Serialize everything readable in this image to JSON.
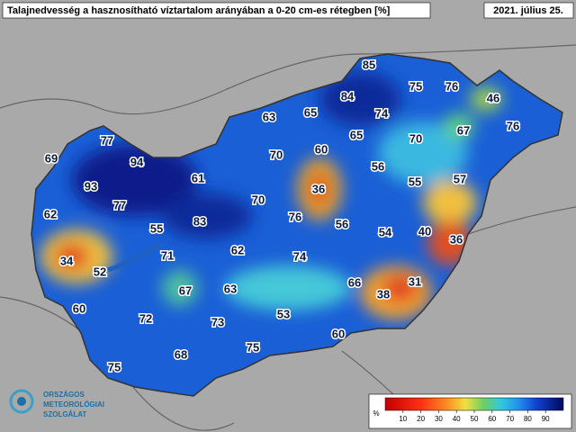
{
  "header": {
    "title": "Talajnedvesség a hasznosítható víztartalom arányában a 0-20 cm-es rétegben [%]",
    "date": "2021. július 25."
  },
  "stations": [
    85,
    75,
    76,
    46,
    84,
    63,
    65,
    74,
    67,
    76,
    77,
    60,
    65,
    70,
    69,
    94,
    70,
    56,
    93,
    61,
    36,
    55,
    57,
    62,
    77,
    70,
    76,
    56,
    54,
    40,
    36,
    55,
    83,
    34,
    71,
    62,
    74,
    52,
    67,
    63,
    66,
    38,
    31,
    60,
    72,
    73,
    53,
    60,
    75,
    68,
    75
  ],
  "legend": {
    "unit": "%",
    "ticks": [
      10,
      20,
      30,
      40,
      50,
      60,
      70,
      80,
      90
    ]
  },
  "logo": {
    "lines": [
      "ORSZÁGOS",
      "METEOROLÓGIAI",
      "SZOLGÁLAT"
    ]
  }
}
